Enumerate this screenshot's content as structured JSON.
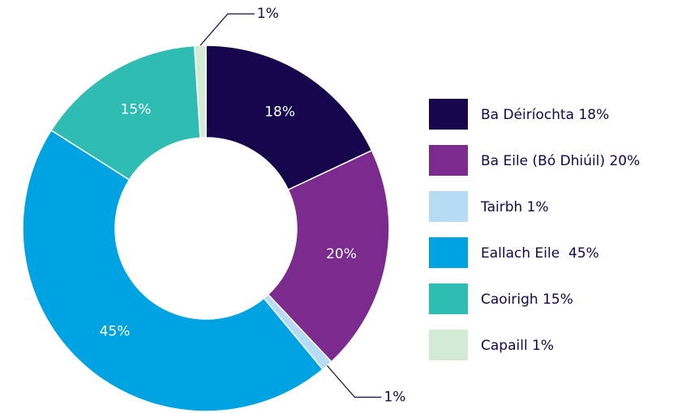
{
  "chart_data": {
    "type": "donut",
    "categories": [
      "Ba Déiríochta 18%",
      "Ba Eile (Bó Dhiúil) 20%",
      "Tairbh 1%",
      "Eallach Eile  45%",
      "Caoirigh 15%",
      "Capaill 1%"
    ],
    "values": [
      18,
      20,
      1,
      45,
      15,
      1
    ],
    "value_labels": [
      "18%",
      "20%",
      "1%",
      "45%",
      "15%",
      "1%"
    ],
    "colors": [
      "#16064b",
      "#7b2a8d",
      "#b6dcf5",
      "#00a3e1",
      "#2fbdb3",
      "#d3ebd4"
    ],
    "legend": "right"
  }
}
